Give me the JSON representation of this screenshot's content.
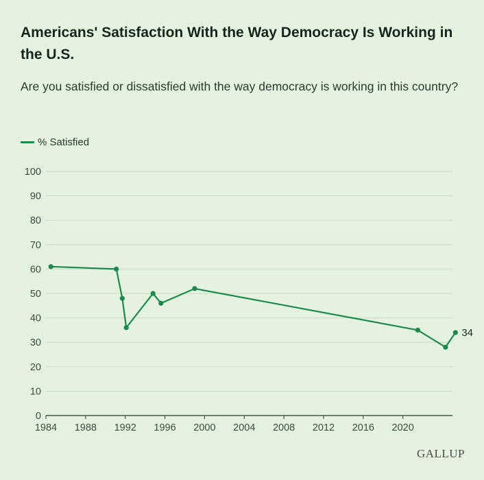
{
  "header": {
    "title": "Americans' Satisfaction With the Way Democracy Is Working in the U.S.",
    "subtitle": "Are you satisfied or dissatisfied with the way democracy is working in this country?"
  },
  "legend": {
    "label": "% Satisfied"
  },
  "footer": {
    "logo": "GALLUP"
  },
  "colors": {
    "line": "#1a8a4a",
    "background": "#e6f2e0",
    "grid": "#c9d8c2"
  },
  "chart_data": {
    "type": "line",
    "title": "Americans' Satisfaction With the Way Democracy Is Working in the U.S.",
    "subtitle": "Are you satisfied or dissatisfied with the way democracy is working in this country?",
    "xlabel": "",
    "ylabel": "",
    "xlim": [
      1984,
      2025
    ],
    "ylim": [
      0,
      100
    ],
    "x_ticks": [
      "1984",
      "1988",
      "1992",
      "1996",
      "2000",
      "2004",
      "2008",
      "2012",
      "2016",
      "2020"
    ],
    "y_ticks": [
      "0",
      "10",
      "20",
      "30",
      "40",
      "50",
      "60",
      "70",
      "80",
      "90",
      "100"
    ],
    "grid": true,
    "legend_position": "top-left",
    "series": [
      {
        "name": "% Satisfied",
        "x": [
          1984.5,
          1991.1,
          1991.7,
          1992.1,
          1994.8,
          1995.6,
          1999.0,
          2021.5,
          2024.3,
          2025.3
        ],
        "values": [
          61,
          60,
          48,
          36,
          50,
          46,
          52,
          35,
          28,
          34
        ]
      }
    ],
    "annotations": [
      {
        "label": "34"
      }
    ]
  }
}
